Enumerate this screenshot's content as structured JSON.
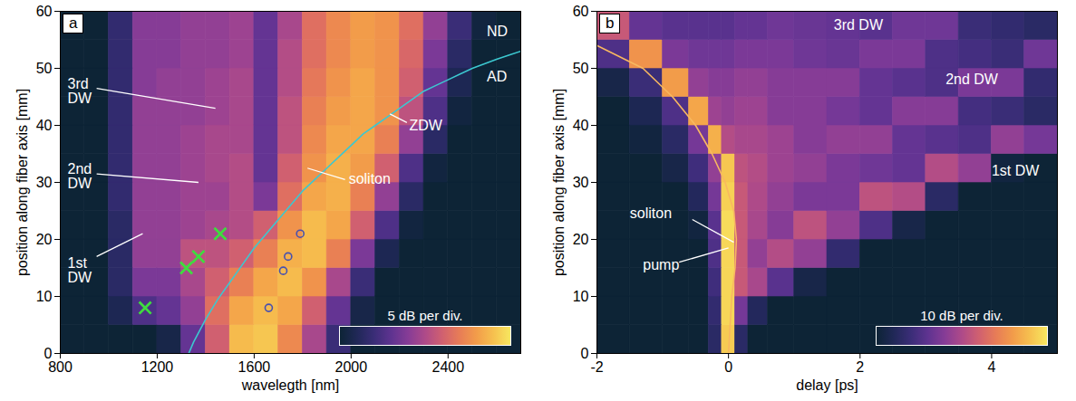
{
  "chart_data": [
    {
      "type": "heatmap",
      "panel": "a",
      "xlabel": "wavelegth [nm]",
      "ylabel": "position along fiber axis [mm]",
      "xlim": [
        800,
        2700
      ],
      "ylim": [
        0,
        60
      ],
      "xticks": [
        800,
        1200,
        1600,
        2000,
        2400
      ],
      "yticks": [
        0,
        10,
        20,
        30,
        40,
        50,
        60
      ],
      "x_edges": [
        800,
        900,
        1000,
        1100,
        1200,
        1300,
        1400,
        1500,
        1600,
        1700,
        1800,
        1900,
        2000,
        2100,
        2200,
        2300,
        2400,
        2500,
        2600,
        2700
      ],
      "y_edges": [
        0,
        5,
        10,
        15,
        20,
        25,
        30,
        35,
        40,
        45,
        50,
        55,
        60
      ],
      "cells": [
        [
          -35,
          -35,
          -35,
          -35,
          -33,
          -24,
          -14,
          -4,
          -3,
          -9,
          -18,
          -28,
          -35,
          -35,
          -35,
          -35,
          -35,
          -35,
          -35
        ],
        [
          -35,
          -35,
          -32,
          -26,
          -24,
          -20,
          -12,
          -6,
          -4,
          -6,
          -14,
          -24,
          -33,
          -35,
          -35,
          -35,
          -35,
          -35,
          -35
        ],
        [
          -35,
          -35,
          -30,
          -22,
          -22,
          -18,
          -14,
          -10,
          -6,
          -4,
          -8,
          -18,
          -28,
          -35,
          -35,
          -35,
          -35,
          -35,
          -35
        ],
        [
          -35,
          -35,
          -30,
          -20,
          -20,
          -16,
          -16,
          -14,
          -10,
          -5,
          -4,
          -10,
          -22,
          -32,
          -35,
          -35,
          -35,
          -35,
          -35
        ],
        [
          -35,
          -35,
          -30,
          -20,
          -20,
          -19,
          -18,
          -17,
          -14,
          -8,
          -4,
          -6,
          -14,
          -26,
          -34,
          -35,
          -35,
          -35,
          -35
        ],
        [
          -35,
          -35,
          -29,
          -20,
          -20,
          -19,
          -19,
          -17,
          -22,
          -12,
          -6,
          -5,
          -10,
          -20,
          -30,
          -35,
          -35,
          -35,
          -35
        ],
        [
          -35,
          -35,
          -29,
          -20,
          -20,
          -19,
          -18,
          -17,
          -24,
          -14,
          -8,
          -5,
          -7,
          -14,
          -26,
          -34,
          -35,
          -35,
          -35
        ],
        [
          -35,
          -35,
          -29,
          -20,
          -20,
          -19,
          -18,
          -18,
          -24,
          -16,
          -9,
          -6,
          -6,
          -10,
          -20,
          -30,
          -35,
          -35,
          -35
        ],
        [
          -35,
          -35,
          -29,
          -20,
          -20,
          -20,
          -19,
          -18,
          -24,
          -16,
          -10,
          -7,
          -6,
          -8,
          -16,
          -26,
          -34,
          -35,
          -35
        ],
        [
          -35,
          -35,
          -29,
          -21,
          -20,
          -20,
          -19,
          -18,
          -24,
          -17,
          -11,
          -8,
          -6,
          -8,
          -14,
          -24,
          -32,
          -35,
          -35
        ],
        [
          -35,
          -35,
          -29,
          -21,
          -21,
          -20,
          -20,
          -19,
          -24,
          -17,
          -12,
          -9,
          -7,
          -8,
          -13,
          -22,
          -30,
          -35,
          -35
        ],
        [
          -35,
          -35,
          -29,
          -21,
          -21,
          -20,
          -20,
          -19,
          -24,
          -18,
          -12,
          -9,
          -7,
          -8,
          -12,
          -20,
          -28,
          -34,
          -35
        ]
      ],
      "clim": [
        -35,
        0
      ],
      "colorbar_label": "5 dB per div.",
      "series": [
        {
          "type": "line",
          "line_style": "solid",
          "color": "#3cc8d0",
          "x": [
            1330,
            1350,
            1400,
            1450,
            1500,
            1550,
            1600,
            1650,
            1700,
            1750,
            1800,
            1850,
            1900,
            1950,
            2000,
            2050,
            2100,
            2150,
            2200,
            2250,
            2300,
            2350,
            2400,
            2450,
            2500,
            2550,
            2600,
            2650,
            2700
          ],
          "y": [
            0,
            2,
            6,
            9.5,
            12.5,
            15.5,
            18.5,
            21,
            23.5,
            26,
            28.5,
            30.5,
            32.5,
            34.5,
            36.5,
            38.5,
            40,
            41.5,
            43,
            44.5,
            46,
            47,
            48,
            49,
            50,
            50.8,
            51.6,
            52.3,
            53
          ]
        },
        {
          "type": "scatter",
          "marker": "x",
          "color": "#3fdc3f",
          "x": [
            1150,
            1320,
            1370,
            1460
          ],
          "y": [
            8,
            15,
            17,
            21
          ]
        },
        {
          "type": "scatter",
          "marker": "circle",
          "color": "#4650b0",
          "x": [
            1660,
            1720,
            1740,
            1790
          ],
          "y": [
            8,
            14.5,
            17,
            21
          ]
        }
      ],
      "annotations": [
        {
          "text": "3rd DW",
          "x": 830,
          "y": 46,
          "from": [
            950,
            46.5
          ],
          "to": [
            1440,
            43
          ]
        },
        {
          "text": "2nd DW",
          "x": 830,
          "y": 31,
          "from": [
            950,
            31.5
          ],
          "to": [
            1370,
            30
          ]
        },
        {
          "text": "1st DW",
          "x": 830,
          "y": 14.5,
          "from": [
            950,
            17
          ],
          "to": [
            1140,
            21
          ]
        },
        {
          "text": "soliton",
          "x": 1990,
          "y": 30.5,
          "from": [
            1975,
            30.5
          ],
          "to": [
            1820,
            32.5
          ]
        },
        {
          "text": "ZDW",
          "x": 2240,
          "y": 40,
          "from": [
            2230,
            40.5
          ],
          "to": [
            2160,
            42
          ]
        },
        {
          "text": "ND",
          "x": 2560,
          "y": 56.5
        },
        {
          "text": "AD",
          "x": 2560,
          "y": 48.5
        }
      ]
    },
    {
      "type": "heatmap",
      "panel": "b",
      "xlabel": "delay [ps]",
      "ylabel": "position along fiber axis [mm]",
      "xlim": [
        -2,
        5
      ],
      "ylim": [
        0,
        60
      ],
      "xticks": [
        -2,
        0,
        2,
        4
      ],
      "yticks": [
        0,
        10,
        20,
        30,
        40,
        50,
        60
      ],
      "x_edges": [
        -2,
        -1.5,
        -1,
        -0.6,
        -0.3,
        -0.1,
        0.1,
        0.3,
        0.6,
        1,
        1.5,
        2,
        2.5,
        3,
        3.5,
        4,
        4.5,
        5
      ],
      "y_edges": [
        0,
        5,
        10,
        15,
        20,
        25,
        30,
        35,
        40,
        45,
        50,
        55,
        60
      ],
      "cells": [
        [
          -70,
          -70,
          -70,
          -70,
          -60,
          -5,
          -60,
          -70,
          -70,
          -70,
          -70,
          -70,
          -70,
          -70,
          -70,
          -70,
          -70
        ],
        [
          -70,
          -70,
          -70,
          -70,
          -58,
          -3,
          -45,
          -62,
          -70,
          -70,
          -70,
          -70,
          -70,
          -70,
          -70,
          -70,
          -70
        ],
        [
          -70,
          -70,
          -70,
          -70,
          -55,
          -3,
          -30,
          -36,
          -50,
          -66,
          -70,
          -70,
          -70,
          -70,
          -70,
          -70,
          -70
        ],
        [
          -70,
          -70,
          -70,
          -70,
          -52,
          -3,
          -30,
          -40,
          -34,
          -40,
          -58,
          -70,
          -70,
          -70,
          -70,
          -70,
          -70
        ],
        [
          -70,
          -70,
          -70,
          -68,
          -50,
          -2,
          -30,
          -36,
          -42,
          -32,
          -40,
          -52,
          -66,
          -70,
          -70,
          -70,
          -70
        ],
        [
          -70,
          -70,
          -70,
          -62,
          -45,
          -4,
          -30,
          -35,
          -40,
          -44,
          -44,
          -32,
          -34,
          -60,
          -70,
          -70,
          -70
        ],
        [
          -70,
          -70,
          -66,
          -55,
          -40,
          -6,
          -32,
          -34,
          -38,
          -40,
          -44,
          -46,
          -48,
          -34,
          -40,
          -68,
          -70
        ],
        [
          -70,
          -68,
          -60,
          -45,
          -10,
          -34,
          -36,
          -36,
          -38,
          -42,
          -40,
          -40,
          -48,
          -50,
          -52,
          -40,
          -45
        ],
        [
          -70,
          -64,
          -52,
          -12,
          -38,
          -40,
          -38,
          -38,
          -42,
          -42,
          -45,
          -48,
          -42,
          -42,
          -54,
          -56,
          -60
        ],
        [
          -66,
          -56,
          -14,
          -40,
          -42,
          -42,
          -40,
          -40,
          -42,
          -42,
          -42,
          -48,
          -50,
          -52,
          -44,
          -44,
          -58
        ],
        [
          -52,
          -16,
          -44,
          -46,
          -46,
          -46,
          -44,
          -44,
          -44,
          -46,
          -47,
          -44,
          -44,
          -52,
          -54,
          -56,
          -46
        ],
        [
          -30,
          -48,
          -50,
          -50,
          -50,
          -50,
          -48,
          -48,
          -46,
          -47,
          -48,
          -50,
          -46,
          -46,
          -56,
          -58,
          -60
        ]
      ],
      "clim": [
        -70,
        0
      ],
      "colorbar_label": "10 dB per div.",
      "series": [
        {
          "type": "line",
          "line_style": "solid",
          "color": "#f8b860",
          "x": [
            0,
            0.05,
            0.1,
            0.12,
            0.08,
            -0.05,
            -0.25,
            -0.5,
            -0.85,
            -1.3,
            -2
          ],
          "y": [
            0,
            10,
            15,
            20,
            25,
            30,
            35,
            40,
            45,
            50,
            54
          ]
        }
      ],
      "annotations": [
        {
          "text": "3rd DW",
          "x": 1.6,
          "y": 57.5
        },
        {
          "text": "2nd DW",
          "x": 3.3,
          "y": 48
        },
        {
          "text": "1st DW",
          "x": 4.0,
          "y": 32
        },
        {
          "text": "soliton",
          "x": -1.5,
          "y": 24.5,
          "from": [
            -0.55,
            23.5
          ],
          "to": [
            0.08,
            19.5
          ]
        },
        {
          "text": "pump",
          "x": -1.3,
          "y": 15.5,
          "from": [
            -0.75,
            16
          ],
          "to": [
            0,
            18.5
          ]
        }
      ]
    }
  ]
}
